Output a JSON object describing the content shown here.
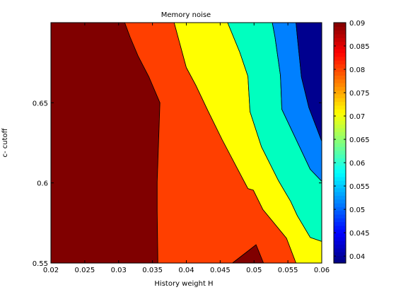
{
  "chart_data": {
    "type": "contour",
    "title": "Memory noise",
    "xlabel": "History weight H",
    "ylabel": "c- cutoff",
    "xlim": [
      0.02,
      0.06
    ],
    "ylim": [
      0.55,
      0.7
    ],
    "x_ticks": [
      "0.02",
      "0.025",
      "0.03",
      "0.035",
      "0.04",
      "0.045",
      "0.05",
      "0.055",
      "0.06"
    ],
    "y_ticks": [
      "0.55",
      "0.6",
      "0.65"
    ],
    "colorbar": {
      "min": 0.0385,
      "max": 0.09,
      "ticks": [
        "0.09",
        "0.085",
        "0.08",
        "0.075",
        "0.07",
        "0.065",
        "0.06",
        "0.055",
        "0.05",
        "0.045",
        "0.04"
      ]
    },
    "regions": [
      {
        "level": "0.085-0.09",
        "color": "#800000",
        "points": [
          [
            0.02,
            0.55
          ],
          [
            0.0358,
            0.55
          ],
          [
            0.0357,
            0.5825
          ],
          [
            0.0357,
            0.6005
          ],
          [
            0.0361,
            0.65
          ],
          [
            0.0345,
            0.666
          ],
          [
            0.0329,
            0.679
          ],
          [
            0.0317,
            0.691
          ],
          [
            0.0309,
            0.7
          ],
          [
            0.02,
            0.7
          ]
        ]
      },
      {
        "level": "0.085-0.09",
        "color": "#800000",
        "points": [
          [
            0.0468,
            0.55
          ],
          [
            0.0514,
            0.55
          ],
          [
            0.0503,
            0.5615
          ],
          [
            0.0497,
            0.5595
          ]
        ]
      },
      {
        "level": "0.08-0.085",
        "color": "#ff3f00",
        "points": [
          [
            0.0358,
            0.55
          ],
          [
            0.0468,
            0.55
          ],
          [
            0.0497,
            0.5595
          ],
          [
            0.0503,
            0.5615
          ],
          [
            0.0514,
            0.55
          ],
          [
            0.0562,
            0.55
          ],
          [
            0.0548,
            0.5655
          ],
          [
            0.0513,
            0.5835
          ],
          [
            0.0499,
            0.5955
          ],
          [
            0.0491,
            0.5965
          ],
          [
            0.0453,
            0.627
          ],
          [
            0.0432,
            0.645
          ],
          [
            0.0414,
            0.661
          ],
          [
            0.04,
            0.672
          ],
          [
            0.0382,
            0.7
          ],
          [
            0.0309,
            0.7
          ],
          [
            0.0317,
            0.691
          ],
          [
            0.0329,
            0.679
          ],
          [
            0.0345,
            0.666
          ],
          [
            0.0361,
            0.65
          ],
          [
            0.0357,
            0.6005
          ],
          [
            0.0357,
            0.5825
          ]
        ]
      },
      {
        "level": "0.07-0.075",
        "color": "#ffff00",
        "points": [
          [
            0.0562,
            0.55
          ],
          [
            0.06,
            0.55
          ],
          [
            0.06,
            0.5635
          ],
          [
            0.0583,
            0.566
          ],
          [
            0.0564,
            0.5795
          ],
          [
            0.0554,
            0.5885
          ],
          [
            0.0536,
            0.6015
          ],
          [
            0.0511,
            0.6225
          ],
          [
            0.0494,
            0.6445
          ],
          [
            0.0491,
            0.6665
          ],
          [
            0.0479,
            0.6815
          ],
          [
            0.0461,
            0.7
          ],
          [
            0.0382,
            0.7
          ],
          [
            0.04,
            0.672
          ],
          [
            0.0414,
            0.661
          ],
          [
            0.0432,
            0.645
          ],
          [
            0.0453,
            0.627
          ],
          [
            0.0491,
            0.5965
          ],
          [
            0.0499,
            0.5955
          ],
          [
            0.0513,
            0.5835
          ],
          [
            0.0548,
            0.5655
          ]
        ]
      },
      {
        "level": "0.06-0.065",
        "color": "#00ffbf",
        "points": [
          [
            0.0461,
            0.7
          ],
          [
            0.0479,
            0.6815
          ],
          [
            0.0491,
            0.6665
          ],
          [
            0.0494,
            0.6445
          ],
          [
            0.0511,
            0.6225
          ],
          [
            0.0536,
            0.6015
          ],
          [
            0.0554,
            0.5885
          ],
          [
            0.0564,
            0.5795
          ],
          [
            0.0583,
            0.566
          ],
          [
            0.06,
            0.5635
          ],
          [
            0.06,
            0.601
          ],
          [
            0.0583,
            0.6085
          ],
          [
            0.0565,
            0.6245
          ],
          [
            0.0541,
            0.646
          ],
          [
            0.0539,
            0.667
          ],
          [
            0.0531,
            0.691
          ],
          [
            0.0527,
            0.7
          ]
        ]
      },
      {
        "level": "0.05-0.055",
        "color": "#0080ff",
        "points": [
          [
            0.0527,
            0.7
          ],
          [
            0.0531,
            0.691
          ],
          [
            0.0539,
            0.667
          ],
          [
            0.0541,
            0.646
          ],
          [
            0.0565,
            0.6245
          ],
          [
            0.0583,
            0.6085
          ],
          [
            0.06,
            0.601
          ],
          [
            0.06,
            0.626
          ],
          [
            0.0581,
            0.647
          ],
          [
            0.057,
            0.666
          ],
          [
            0.0564,
            0.691
          ],
          [
            0.0562,
            0.7
          ]
        ]
      },
      {
        "level": "0.04-0.045",
        "color": "#00008f",
        "points": [
          [
            0.0562,
            0.7
          ],
          [
            0.0564,
            0.691
          ],
          [
            0.057,
            0.666
          ],
          [
            0.0581,
            0.647
          ],
          [
            0.06,
            0.626
          ],
          [
            0.06,
            0.7
          ]
        ]
      }
    ]
  }
}
